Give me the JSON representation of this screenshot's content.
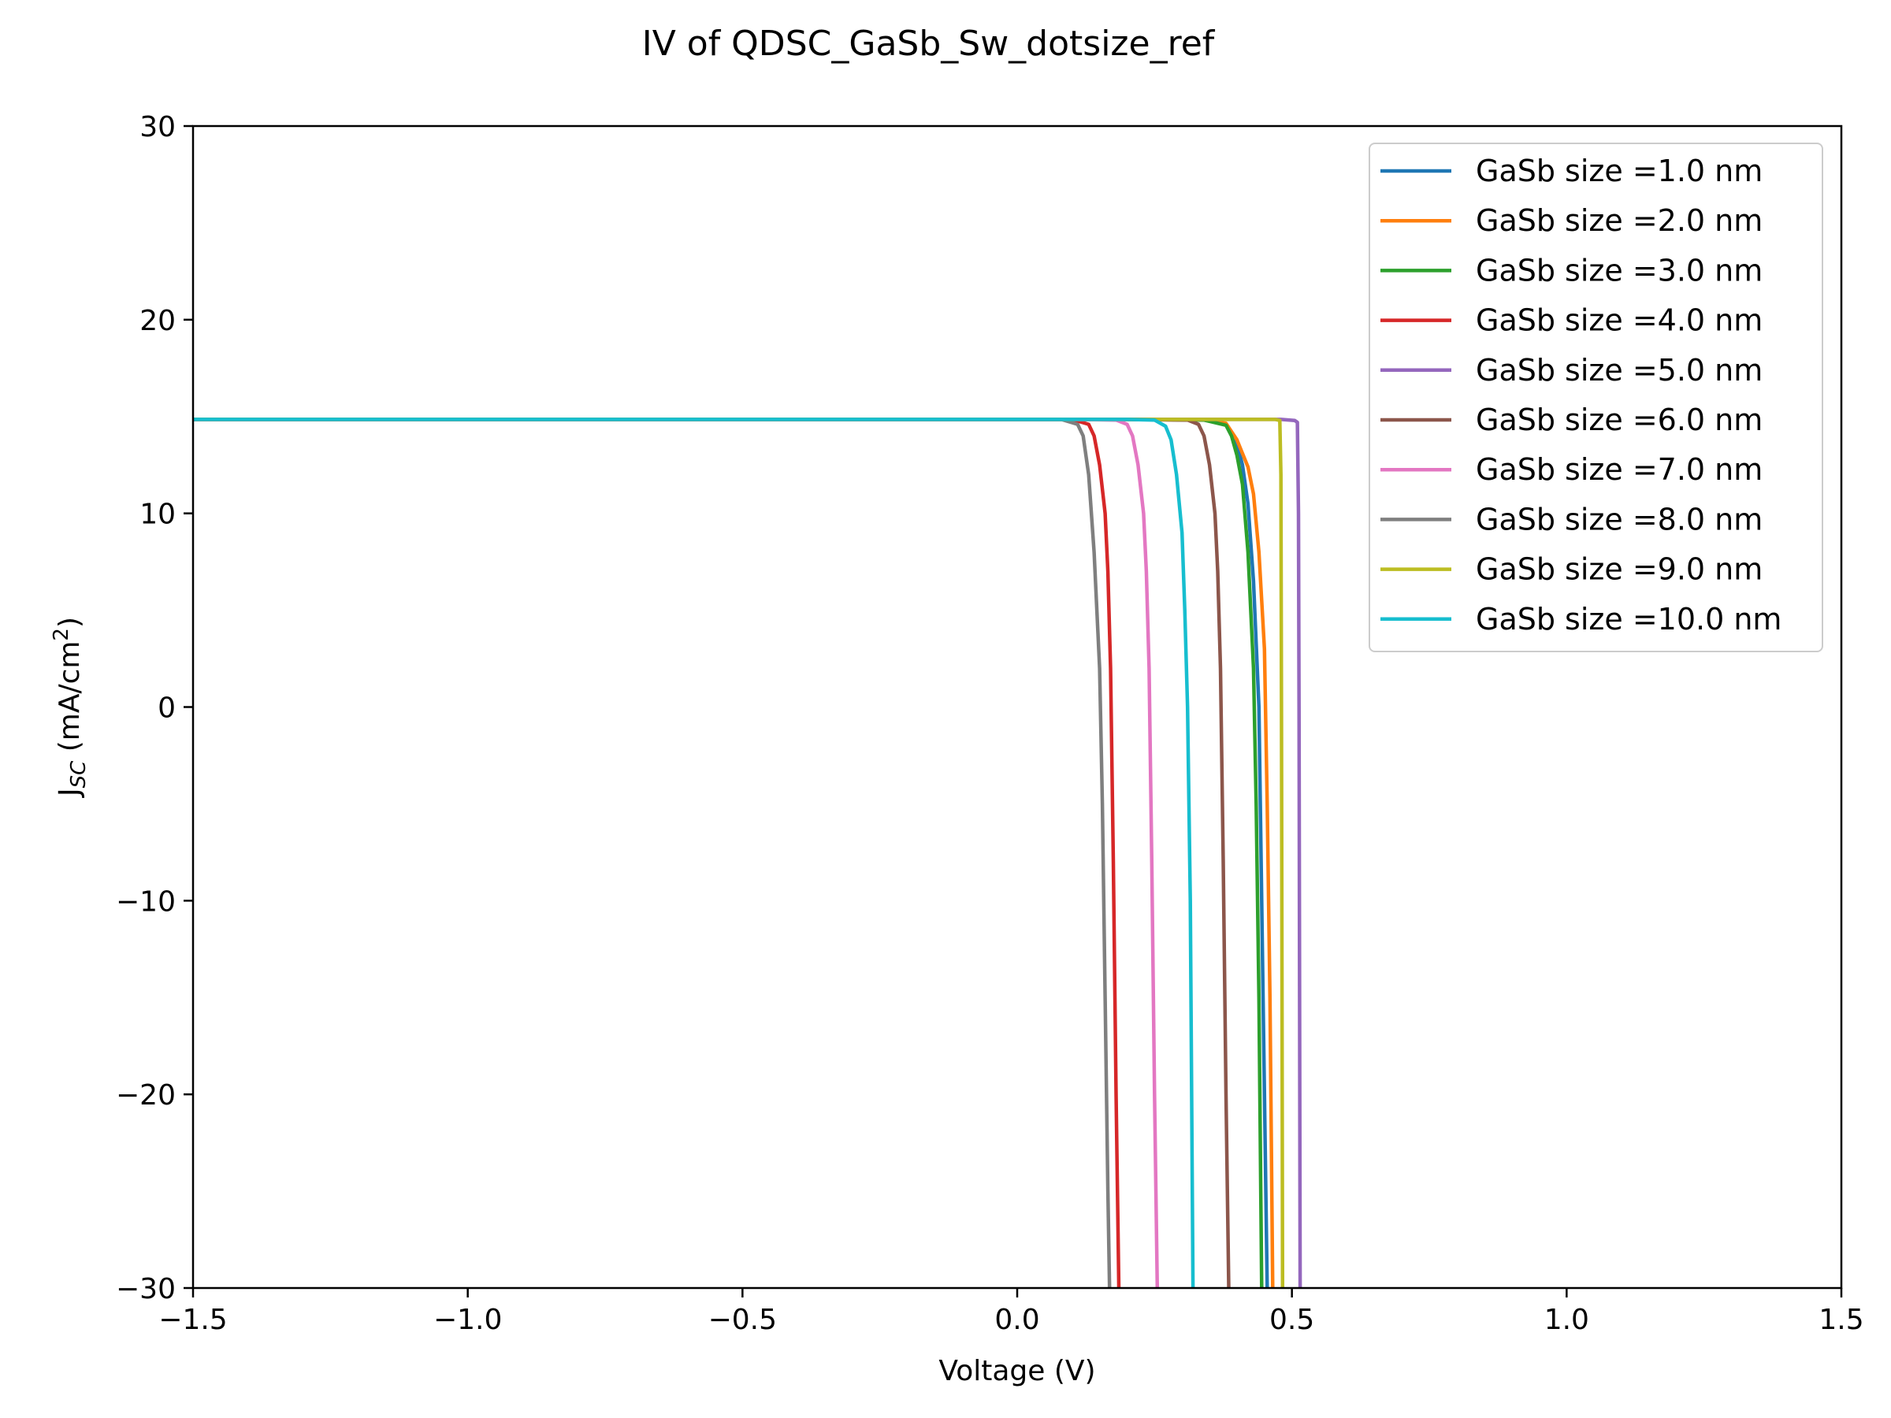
{
  "chart_data": {
    "type": "line",
    "title": "IV of QDSC_GaSb_Sw_dotsize_ref",
    "xlabel": "Voltage (V)",
    "ylabel": "J",
    "ylabel_sub": "SC",
    "ylabel_unit": " (mA/cm",
    "ylabel_sup": "2",
    "ylabel_close": ")",
    "xlim": [
      -1.5,
      1.5
    ],
    "ylim": [
      -30,
      30
    ],
    "x_ticks": [
      -1.5,
      -1.0,
      -0.5,
      0.0,
      0.5,
      1.0,
      1.5
    ],
    "x_tick_labels": [
      "−1.5",
      "−1.0",
      "−0.5",
      "0.0",
      "0.5",
      "1.0",
      "1.5"
    ],
    "y_ticks": [
      -30,
      -20,
      -10,
      0,
      10,
      20,
      30
    ],
    "y_tick_labels": [
      "−30",
      "−20",
      "−10",
      "0",
      "10",
      "20",
      "30"
    ],
    "grid": false,
    "legend_position": "top-right",
    "series": [
      {
        "name": "GaSb size =1.0 nm",
        "color": "#1f77b4",
        "points": [
          [
            -1.5,
            14.85
          ],
          [
            0.2,
            14.85
          ],
          [
            0.34,
            14.82
          ],
          [
            0.38,
            14.6
          ],
          [
            0.4,
            13.6
          ],
          [
            0.41,
            12.5
          ],
          [
            0.42,
            10.5
          ],
          [
            0.43,
            6.5
          ],
          [
            0.44,
            0
          ],
          [
            0.445,
            -10
          ],
          [
            0.45,
            -20
          ],
          [
            0.455,
            -30
          ]
        ]
      },
      {
        "name": "GaSb size =2.0 nm",
        "color": "#ff7f0e",
        "points": [
          [
            -1.5,
            14.85
          ],
          [
            0.2,
            14.85
          ],
          [
            0.34,
            14.82
          ],
          [
            0.38,
            14.65
          ],
          [
            0.4,
            13.8
          ],
          [
            0.42,
            12.4
          ],
          [
            0.43,
            11.0
          ],
          [
            0.44,
            8.0
          ],
          [
            0.45,
            3.0
          ],
          [
            0.455,
            -5
          ],
          [
            0.46,
            -15
          ],
          [
            0.465,
            -30
          ]
        ]
      },
      {
        "name": "GaSb size =3.0 nm",
        "color": "#2ca02c",
        "points": [
          [
            -1.5,
            14.85
          ],
          [
            0.2,
            14.85
          ],
          [
            0.34,
            14.82
          ],
          [
            0.38,
            14.55
          ],
          [
            0.39,
            14.0
          ],
          [
            0.4,
            13.0
          ],
          [
            0.41,
            11.5
          ],
          [
            0.42,
            8.0
          ],
          [
            0.43,
            2.0
          ],
          [
            0.435,
            -5
          ],
          [
            0.44,
            -15
          ],
          [
            0.445,
            -30
          ]
        ]
      },
      {
        "name": "GaSb size =4.0 nm",
        "color": "#d62728",
        "points": [
          [
            -1.5,
            14.85
          ],
          [
            0.1,
            14.85
          ],
          [
            0.13,
            14.6
          ],
          [
            0.14,
            14.0
          ],
          [
            0.15,
            12.5
          ],
          [
            0.16,
            10.0
          ],
          [
            0.165,
            7.0
          ],
          [
            0.17,
            2.0
          ],
          [
            0.175,
            -8
          ],
          [
            0.18,
            -20
          ],
          [
            0.185,
            -30
          ]
        ]
      },
      {
        "name": "GaSb size =5.0 nm",
        "color": "#9467bd",
        "points": [
          [
            -1.5,
            14.85
          ],
          [
            0.48,
            14.85
          ],
          [
            0.505,
            14.8
          ],
          [
            0.51,
            14.7
          ],
          [
            0.512,
            10
          ],
          [
            0.513,
            0
          ],
          [
            0.514,
            -15
          ],
          [
            0.515,
            -30
          ]
        ]
      },
      {
        "name": "GaSb size =6.0 nm",
        "color": "#8c564b",
        "points": [
          [
            -1.5,
            14.85
          ],
          [
            0.2,
            14.85
          ],
          [
            0.31,
            14.82
          ],
          [
            0.33,
            14.6
          ],
          [
            0.34,
            14.0
          ],
          [
            0.35,
            12.5
          ],
          [
            0.36,
            10.0
          ],
          [
            0.365,
            7.0
          ],
          [
            0.37,
            2.0
          ],
          [
            0.375,
            -8
          ],
          [
            0.38,
            -20
          ],
          [
            0.385,
            -30
          ]
        ]
      },
      {
        "name": "GaSb size =7.0 nm",
        "color": "#e377c2",
        "points": [
          [
            -1.5,
            14.85
          ],
          [
            0.1,
            14.85
          ],
          [
            0.18,
            14.82
          ],
          [
            0.2,
            14.6
          ],
          [
            0.21,
            14.0
          ],
          [
            0.22,
            12.5
          ],
          [
            0.23,
            10.0
          ],
          [
            0.235,
            7.0
          ],
          [
            0.24,
            2.0
          ],
          [
            0.245,
            -8
          ],
          [
            0.25,
            -20
          ],
          [
            0.255,
            -30
          ]
        ]
      },
      {
        "name": "GaSb size =8.0 nm",
        "color": "#7f7f7f",
        "points": [
          [
            -1.5,
            14.85
          ],
          [
            0.08,
            14.85
          ],
          [
            0.11,
            14.6
          ],
          [
            0.12,
            14.0
          ],
          [
            0.13,
            12.0
          ],
          [
            0.14,
            8.0
          ],
          [
            0.15,
            2.0
          ],
          [
            0.155,
            -5
          ],
          [
            0.16,
            -15
          ],
          [
            0.165,
            -25
          ],
          [
            0.168,
            -30
          ]
        ]
      },
      {
        "name": "GaSb size =9.0 nm",
        "color": "#bcbd22",
        "points": [
          [
            -1.5,
            14.85
          ],
          [
            0.47,
            14.85
          ],
          [
            0.478,
            14.8
          ],
          [
            0.48,
            12
          ],
          [
            0.481,
            0
          ],
          [
            0.482,
            -15
          ],
          [
            0.483,
            -30
          ]
        ]
      },
      {
        "name": "GaSb size =10.0 nm",
        "color": "#17becf",
        "points": [
          [
            -1.5,
            14.85
          ],
          [
            0.2,
            14.85
          ],
          [
            0.25,
            14.82
          ],
          [
            0.27,
            14.5
          ],
          [
            0.28,
            13.8
          ],
          [
            0.29,
            12.0
          ],
          [
            0.3,
            9.0
          ],
          [
            0.305,
            5.0
          ],
          [
            0.31,
            0
          ],
          [
            0.315,
            -10
          ],
          [
            0.32,
            -30
          ]
        ]
      }
    ]
  }
}
